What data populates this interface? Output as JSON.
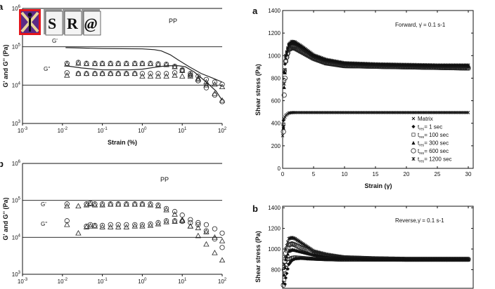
{
  "logo": {
    "text": "SR@",
    "colors": {
      "red": "#e4161c",
      "purple": "#5b2a86",
      "cross": "#e9d59a"
    }
  },
  "chart_data": [
    {
      "panel": "a",
      "type": "scatter",
      "title": "PP",
      "xlabel": "Strain (%)",
      "ylabel": "G' and G'' (Pa)",
      "xscale": "log",
      "yscale": "log",
      "xlim": [
        0.001,
        100
      ],
      "ylim": [
        1000,
        1000000
      ],
      "xticks": [
        "10-3",
        "10-2",
        "10-1",
        "100",
        "101",
        "102"
      ],
      "yticks": [
        "103",
        "104",
        "105",
        "106"
      ],
      "grid": "horizontal at 10^4 and 10^5",
      "annotations": [
        "G'",
        "G''"
      ],
      "x": [
        0.013,
        0.025,
        0.04,
        0.065,
        0.1,
        0.16,
        0.25,
        0.4,
        0.65,
        1,
        1.6,
        2.5,
        4,
        6.5,
        10,
        16,
        25,
        40,
        65,
        100
      ],
      "series": [
        {
          "marker": "circle",
          "values": [
            37000,
            39000,
            37000,
            37000,
            37000,
            37000,
            37000,
            37000,
            37000,
            37000,
            37000,
            36000,
            35000,
            31000,
            25000,
            20000,
            17000,
            14000,
            12000,
            10500
          ]
        },
        {
          "marker": "triangle",
          "values": [
            35000,
            37000,
            36000,
            36000,
            36000,
            36000,
            36000,
            36000,
            36000,
            36000,
            36000,
            35000,
            34000,
            30000,
            24000,
            19000,
            15000,
            12000,
            10500,
            9000
          ]
        },
        {
          "marker": "circle",
          "values": [
            21000,
            20000,
            20000,
            20000,
            20000,
            20000,
            20000,
            20000,
            20000,
            20000,
            20000,
            20000,
            20000,
            21000,
            24000,
            18000,
            13000,
            8500,
            5500,
            3700
          ]
        },
        {
          "marker": "triangle",
          "values": [
            18000,
            20000,
            20000,
            20000,
            20000,
            20000,
            20000,
            20000,
            20000,
            17000,
            17000,
            17000,
            17000,
            18000,
            17000,
            17000,
            14000,
            10000,
            6000,
            4000
          ]
        },
        {
          "marker": "line",
          "x": [
            0.012,
            0.1,
            1,
            2,
            3,
            5,
            8,
            15,
            30,
            60,
            100
          ],
          "values": [
            95000,
            90000,
            88000,
            84000,
            78000,
            62000,
            45000,
            30000,
            20000,
            15000,
            12000
          ]
        },
        {
          "marker": "line",
          "x": [
            0.012,
            0.03,
            0.1,
            0.5,
            1,
            2,
            4,
            8,
            12,
            20,
            40,
            70,
            100
          ],
          "values": [
            32000,
            28000,
            25000,
            25000,
            26000,
            29000,
            32000,
            32000,
            30000,
            22000,
            12000,
            7000,
            4000
          ]
        }
      ]
    },
    {
      "panel": "b",
      "type": "scatter",
      "title": "PP",
      "xscale": "log",
      "yscale": "log",
      "xlim": [
        0.001,
        100
      ],
      "ylim": [
        1000,
        1000000
      ],
      "xticks": [
        "10-3",
        "10-2",
        "10-1",
        "100",
        "101",
        "102"
      ],
      "yticks": [
        "103",
        "104",
        "105",
        "106"
      ],
      "grid": "horizontal at 10^4 and 10^5",
      "annotations": [
        "G'",
        "G''"
      ],
      "x": [
        0.013,
        0.025,
        0.04,
        0.05,
        0.065,
        0.1,
        0.16,
        0.25,
        0.4,
        0.65,
        1,
        1.6,
        2.5,
        4,
        6.5,
        10,
        16,
        25,
        40,
        65,
        100
      ],
      "series": [
        {
          "marker": "circle",
          "values": [
            80000,
            null,
            80000,
            85000,
            80000,
            80000,
            80000,
            80000,
            80000,
            80000,
            80000,
            80000,
            75000,
            60000,
            50000,
            40000,
            30000,
            25000,
            22000,
            17000,
            13000
          ]
        },
        {
          "marker": "triangle",
          "values": [
            70000,
            70000,
            75000,
            80000,
            75000,
            75000,
            78000,
            78000,
            78000,
            78000,
            78000,
            75000,
            70000,
            55000,
            42000,
            30000,
            20000,
            11000,
            6500,
            3800,
            2400
          ]
        },
        {
          "marker": "circle",
          "values": [
            28000,
            null,
            20000,
            22000,
            21000,
            21000,
            22000,
            22000,
            22000,
            22000,
            22000,
            23000,
            25000,
            28000,
            28000,
            27000,
            25000,
            22000,
            15000,
            9000,
            5300
          ]
        },
        {
          "marker": "triangle",
          "values": [
            22000,
            13000,
            19000,
            20000,
            20000,
            19000,
            19000,
            19000,
            19000,
            20000,
            20000,
            21000,
            23000,
            26000,
            27000,
            28000,
            20000,
            18000,
            14000,
            10000,
            8000
          ]
        }
      ]
    },
    {
      "panel": "a",
      "type": "scatter",
      "xlabel": "Strain (γ)",
      "ylabel": "Shear stress (Pa)",
      "xlim": [
        0,
        30
      ],
      "ylim": [
        0,
        1400
      ],
      "xticks": [
        "0",
        "5",
        "10",
        "15",
        "20",
        "25",
        "30"
      ],
      "yticks": [
        "0",
        "200",
        "400",
        "600",
        "800",
        "1000",
        "1200",
        "1400"
      ],
      "annotation": "Forward, γ̇ = 0.1 s-1",
      "legend_position": "bottom-right",
      "x": [
        0,
        0.25,
        0.5,
        1,
        1.5,
        2,
        3,
        4,
        5,
        7,
        10,
        15,
        20,
        25,
        30
      ],
      "series": [
        {
          "name": "Matrix",
          "sub": "",
          "marker": "x",
          "values": [
            290,
            440,
            470,
            490,
            495,
            495,
            495,
            495,
            495,
            495,
            495,
            495,
            495,
            495,
            495
          ]
        },
        {
          "name": "t",
          "sub": "res",
          "suffix": "= 1 sec",
          "marker": "diamond",
          "values": [
            0,
            850,
            1000,
            1100,
            1120,
            1115,
            1080,
            1040,
            1000,
            960,
            930,
            920,
            915,
            910,
            910
          ]
        },
        {
          "name": "t",
          "sub": "res",
          "suffix": "= 100 sec",
          "marker": "square",
          "values": [
            0,
            780,
            950,
            1050,
            1065,
            1060,
            1030,
            1000,
            970,
            930,
            905,
            900,
            895,
            890,
            885
          ]
        },
        {
          "name": "t",
          "sub": "res",
          "suffix": "= 300 sec",
          "marker": "triangle-filled",
          "values": [
            0,
            720,
            980,
            1090,
            1110,
            1105,
            1070,
            1035,
            995,
            955,
            925,
            915,
            910,
            905,
            905
          ]
        },
        {
          "name": "t",
          "sub": "res",
          "suffix": "= 600 sec",
          "marker": "circle",
          "values": [
            0,
            650,
            950,
            1060,
            1075,
            1070,
            1040,
            1010,
            980,
            940,
            915,
            905,
            900,
            895,
            890
          ]
        },
        {
          "name": "t",
          "sub": "res",
          "suffix": "= 1200 sec",
          "marker": "star",
          "values": [
            0,
            750,
            1000,
            1100,
            1125,
            1120,
            1085,
            1045,
            1005,
            965,
            935,
            925,
            920,
            915,
            915
          ]
        }
      ]
    },
    {
      "panel": "b",
      "type": "scatter",
      "ylabel": "Shear stress (Pa)",
      "xlim": [
        0,
        30
      ],
      "ylim": [
        0,
        1400
      ],
      "yticks": [
        "800",
        "1000",
        "1200",
        "1400"
      ],
      "annotation": "Reverse,γ̇ = 0.1 s-1",
      "x": [
        0,
        0.25,
        0.5,
        1,
        1.5,
        2,
        3,
        4,
        5,
        7,
        10,
        15,
        20,
        25,
        30
      ],
      "series": [
        {
          "marker": "star",
          "values": [
            500,
            850,
            1000,
            1100,
            1110,
            1100,
            1060,
            1020,
            980,
            950,
            920,
            910,
            905,
            905,
            905
          ]
        },
        {
          "marker": "circle",
          "values": [
            500,
            800,
            960,
            1040,
            1050,
            1040,
            1010,
            990,
            960,
            935,
            915,
            905,
            900,
            900,
            900
          ]
        },
        {
          "marker": "triangle-filled",
          "values": [
            500,
            750,
            900,
            980,
            995,
            990,
            975,
            960,
            945,
            925,
            910,
            905,
            900,
            900,
            900
          ]
        },
        {
          "marker": "square",
          "values": [
            500,
            700,
            820,
            900,
            915,
            920,
            915,
            910,
            905,
            900,
            895,
            895,
            895,
            895,
            895
          ]
        },
        {
          "marker": "diamond",
          "values": [
            500,
            600,
            720,
            850,
            890,
            905,
            910,
            905,
            905,
            900,
            900,
            900,
            900,
            900,
            900
          ]
        }
      ]
    }
  ]
}
